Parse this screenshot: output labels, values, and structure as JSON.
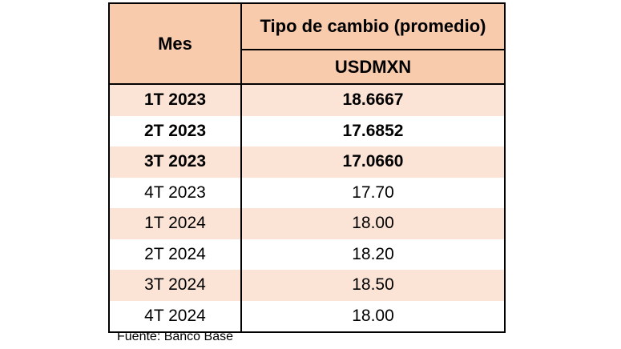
{
  "table": {
    "header": {
      "mes": "Mes",
      "title": "Tipo de cambio (promedio)",
      "sub": "USDMXN"
    },
    "rows": [
      {
        "mes": "1T 2023",
        "value": "18.6667"
      },
      {
        "mes": "2T 2023",
        "value": "17.6852"
      },
      {
        "mes": "3T 2023",
        "value": "17.0660"
      },
      {
        "mes": "4T 2023",
        "value": "17.70"
      },
      {
        "mes": "1T 2024",
        "value": "18.00"
      },
      {
        "mes": "2T 2024",
        "value": "18.20"
      },
      {
        "mes": "3T 2024",
        "value": "18.50"
      },
      {
        "mes": "4T 2024",
        "value": "18.00"
      }
    ]
  },
  "source": "Fuente: Banco Base",
  "colors": {
    "header_bg": "#f8cbad",
    "row_shaded": "#fbe4d5",
    "row_plain": "#ffffff",
    "border": "#000000"
  }
}
